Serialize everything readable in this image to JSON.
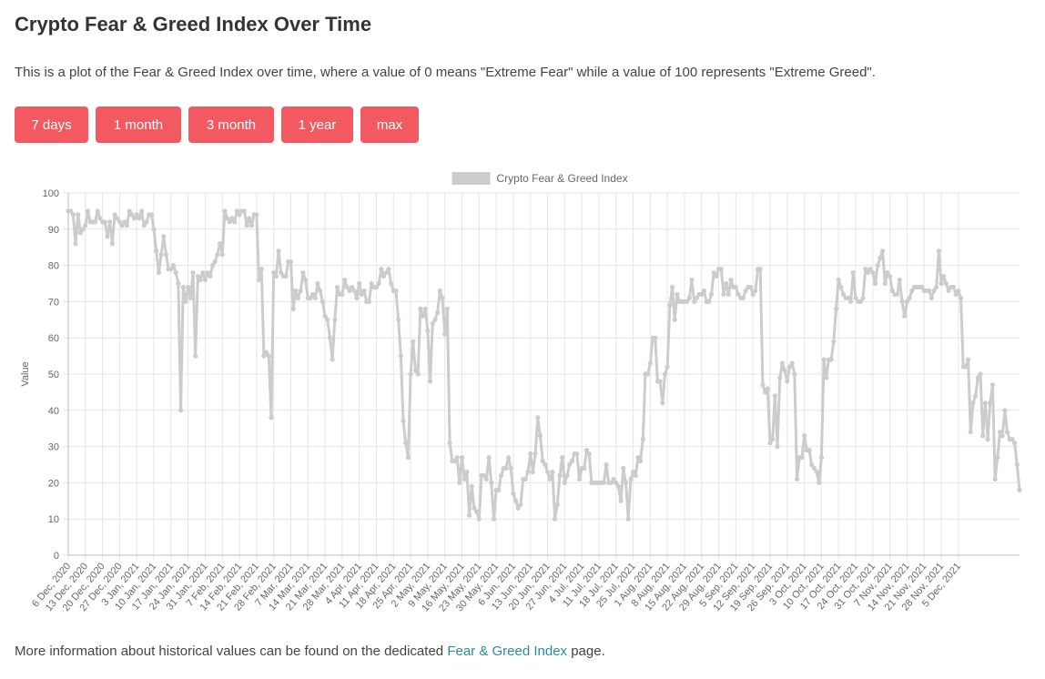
{
  "page": {
    "title": "Crypto Fear & Greed Index Over Time",
    "description": "This is a plot of the Fear & Greed Index over time, where a value of 0 means \"Extreme Fear\" while a value of 100 represents \"Extreme Greed\".",
    "buttons": [
      "7 days",
      "1 month",
      "3 month",
      "1 year",
      "max"
    ],
    "footer_prefix": "More information about historical values can be found on the dedicated ",
    "footer_link": "Fear & Greed Index",
    "footer_suffix": " page."
  },
  "chart_data": {
    "type": "line",
    "legend": "Crypto Fear & Greed Index",
    "legend_position": "top-center",
    "ylabel": "Value",
    "ylim": [
      0,
      100
    ],
    "yticks": [
      0,
      10,
      20,
      30,
      40,
      50,
      60,
      70,
      80,
      90,
      100
    ],
    "grid": true,
    "series_color": "#cccccc",
    "x_start": "2020-12-06",
    "x_tick_labels": [
      "6 Dec, 2020",
      "13 Dec, 2020",
      "20 Dec, 2020",
      "27 Dec, 2020",
      "3 Jan, 2021",
      "10 Jan, 2021",
      "17 Jan, 2021",
      "24 Jan, 2021",
      "31 Jan, 2021",
      "7 Feb, 2021",
      "14 Feb, 2021",
      "21 Feb, 2021",
      "28 Feb, 2021",
      "7 Mar, 2021",
      "14 Mar, 2021",
      "21 Mar, 2021",
      "28 Mar, 2021",
      "4 Apr, 2021",
      "11 Apr, 2021",
      "18 Apr, 2021",
      "25 Apr, 2021",
      "2 May, 2021",
      "9 May, 2021",
      "16 May, 2021",
      "23 May, 2021",
      "30 May, 2021",
      "6 Jun, 2021",
      "13 Jun, 2021",
      "20 Jun, 2021",
      "27 Jun, 2021",
      "4 Jul, 2021",
      "11 Jul, 2021",
      "18 Jul, 2021",
      "25 Jul, 2021",
      "1 Aug, 2021",
      "8 Aug, 2021",
      "15 Aug, 2021",
      "22 Aug, 2021",
      "29 Aug, 2021",
      "5 Sep, 2021",
      "12 Sep, 2021",
      "19 Sep, 2021",
      "26 Sep, 2021",
      "3 Oct, 2021",
      "10 Oct, 2021",
      "17 Oct, 2021",
      "24 Oct, 2021",
      "31 Oct, 2021",
      "7 Nov, 2021",
      "14 Nov, 2021",
      "21 Nov, 2021",
      "28 Nov, 2021",
      "5 Dec, 2021"
    ],
    "values": [
      95,
      95,
      94,
      86,
      94,
      89,
      90,
      91,
      95,
      92,
      92,
      92,
      95,
      93,
      92,
      92,
      88,
      92,
      86,
      94,
      93,
      92,
      91,
      92,
      91,
      95,
      94,
      93,
      94,
      93,
      95,
      91,
      92,
      94,
      94,
      90,
      84,
      78,
      83,
      88,
      83,
      79,
      79,
      80,
      78,
      75,
      40,
      74,
      70,
      74,
      71,
      78,
      55,
      77,
      76,
      78,
      76,
      78,
      77,
      80,
      81,
      83,
      86,
      83,
      95,
      93,
      92,
      93,
      92,
      95,
      94,
      95,
      95,
      91,
      93,
      91,
      94,
      94,
      76,
      79,
      55,
      56,
      55,
      38,
      78,
      77,
      84,
      78,
      77,
      77,
      81,
      81,
      68,
      73,
      71,
      73,
      78,
      76,
      71,
      71,
      72,
      71,
      75,
      73,
      70,
      66,
      65,
      60,
      54,
      65,
      74,
      72,
      72,
      76,
      74,
      73,
      74,
      73,
      71,
      75,
      72,
      73,
      70,
      70,
      75,
      74,
      74,
      75,
      79,
      77,
      78,
      79,
      75,
      73,
      73,
      65,
      55,
      37,
      31,
      27,
      50,
      59,
      51,
      50,
      68,
      66,
      68,
      62,
      48,
      64,
      65,
      67,
      73,
      71,
      61,
      68,
      31,
      26,
      26,
      27,
      20,
      27,
      21,
      23,
      11,
      19,
      13,
      12,
      10,
      22,
      22,
      21,
      27,
      20,
      10,
      18,
      18,
      22,
      24,
      24,
      27,
      24,
      17,
      15,
      13,
      14,
      21,
      21,
      23,
      28,
      23,
      28,
      38,
      33,
      26,
      25,
      23,
      21,
      23,
      10,
      14,
      22,
      27,
      20,
      22,
      25,
      26,
      28,
      28,
      21,
      24,
      24,
      29,
      28,
      20,
      20,
      20,
      20,
      20,
      20,
      25,
      20,
      20,
      21,
      20,
      19,
      15,
      24,
      20,
      10,
      21,
      23,
      22,
      27,
      26,
      32,
      50,
      50,
      53,
      60,
      60,
      48,
      48,
      42,
      50,
      52,
      69,
      74,
      65,
      72,
      70,
      70,
      70,
      70,
      71,
      76,
      70,
      71,
      72,
      72,
      73,
      70,
      70,
      72,
      78,
      77,
      79,
      79,
      72,
      75,
      72,
      76,
      74,
      74,
      72,
      71,
      71,
      73,
      74,
      74,
      72,
      73,
      79,
      79,
      47,
      45,
      46,
      31,
      32,
      44,
      30,
      49,
      53,
      51,
      48,
      52,
      53,
      50,
      21,
      27,
      27,
      33,
      29,
      29,
      25,
      24,
      23,
      20,
      27,
      54,
      49,
      54,
      54,
      59,
      68,
      76,
      74,
      72,
      71,
      71,
      70,
      78,
      71,
      70,
      70,
      71,
      79,
      78,
      79,
      78,
      75,
      80,
      82,
      84,
      75,
      78,
      77,
      73,
      72,
      72,
      76,
      70,
      66,
      70,
      71,
      73,
      74,
      74,
      74,
      74,
      73,
      73,
      73,
      71,
      73,
      74,
      84,
      75,
      77,
      75,
      73,
      74,
      74,
      72,
      73,
      71,
      52,
      52,
      54,
      34,
      42,
      44,
      49,
      50,
      33,
      42,
      32,
      42,
      47,
      21,
      27,
      34,
      33,
      40,
      34,
      32,
      32,
      31,
      25,
      18
    ]
  }
}
